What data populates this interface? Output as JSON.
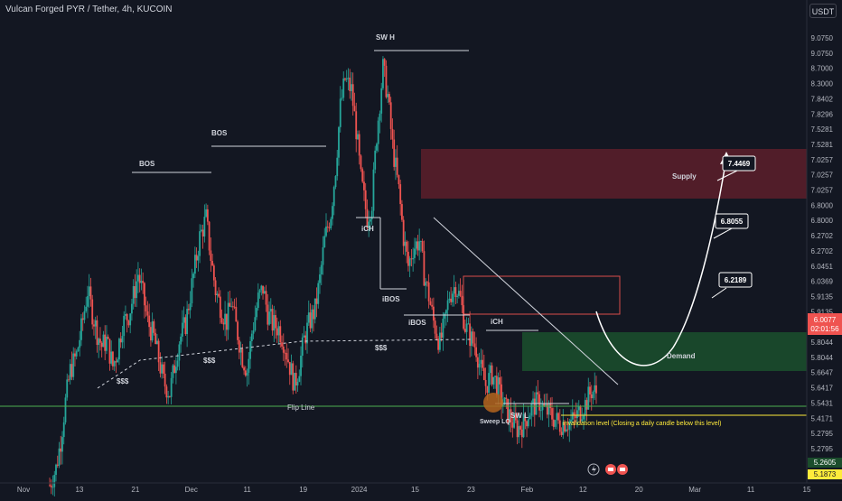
{
  "header": {
    "title": "Vulcan Forged PYR / Tether, 4h, KUCOIN"
  },
  "toolbar": {
    "currency": "USDT"
  },
  "colors": {
    "background": "#131722",
    "up": "#26a69a",
    "down": "#ef5350",
    "supply_zone": "#5d1f2a",
    "demand_zone": "#1b4d2c",
    "annotation": "#d1d4dc",
    "flip_line": "#4caf50",
    "invalidation": "#ffeb3b",
    "sweep_marker": "#b5651d",
    "price_badge": "#ef5350"
  },
  "chart_data": {
    "type": "candlestick",
    "symbol": "Vulcan Forged PYR / Tether",
    "interval": "4h",
    "exchange": "KUCOIN",
    "y_axis": {
      "range": [
        5.17,
        9.35
      ],
      "tick_labels": [
        "9.0750",
        "9.0750",
        "8.7000",
        "8.3000",
        "7.8402",
        "7.8296",
        "7.5281",
        "7.5281",
        "7.0257",
        "7.0257",
        "7.0257",
        "6.8000",
        "6.8000",
        "6.2702",
        "6.2702",
        "6.0451",
        "6.0369",
        "5.9135",
        "5.9135",
        "5.8202",
        "5.8044",
        "5.8044",
        "5.6647",
        "5.6417",
        "5.5431",
        "5.4171",
        "5.2795",
        "5.2795"
      ]
    },
    "x_axis": {
      "tick_labels": [
        "Nov",
        "13",
        "21",
        "Dec",
        "11",
        "19",
        "2024",
        "15",
        "23",
        "Feb",
        "12",
        "20",
        "Mar",
        "11",
        "15"
      ]
    },
    "current_price": {
      "value": "6.0077",
      "countdown": "02:01:56"
    },
    "price_badges": [
      {
        "value": "5.2605",
        "color": "#1b4d2c"
      },
      {
        "value": "5.1873",
        "color": "#ffeb3b"
      }
    ],
    "price_path": [
      [
        0,
        5.15
      ],
      [
        4,
        5.3
      ],
      [
        7,
        5.55
      ],
      [
        10,
        5.9
      ],
      [
        13,
        6.18
      ],
      [
        17,
        6.32
      ],
      [
        20,
        6.55
      ],
      [
        24,
        6.9
      ],
      [
        27,
        6.7
      ],
      [
        30,
        6.52
      ],
      [
        33,
        6.4
      ],
      [
        36,
        6.45
      ],
      [
        40,
        6.22
      ],
      [
        43,
        6.36
      ],
      [
        46,
        6.6
      ],
      [
        50,
        6.68
      ],
      [
        53,
        6.85
      ],
      [
        56,
        7.05
      ],
      [
        59,
        6.86
      ],
      [
        62,
        6.62
      ],
      [
        66,
        6.48
      ],
      [
        69,
        6.28
      ],
      [
        72,
        6.08
      ],
      [
        76,
        5.98
      ],
      [
        79,
        6.22
      ],
      [
        82,
        6.45
      ],
      [
        86,
        6.6
      ],
      [
        89,
        6.86
      ],
      [
        92,
        7.12
      ],
      [
        95,
        7.38
      ],
      [
        99,
        7.55
      ],
      [
        102,
        7.2
      ],
      [
        105,
        6.9
      ],
      [
        109,
        6.72
      ],
      [
        112,
        6.62
      ],
      [
        115,
        6.8
      ],
      [
        118,
        6.58
      ],
      [
        122,
        6.3
      ],
      [
        125,
        6.18
      ],
      [
        128,
        6.52
      ],
      [
        132,
        6.82
      ],
      [
        135,
        6.92
      ],
      [
        138,
        6.7
      ],
      [
        141,
        6.6
      ],
      [
        145,
        6.56
      ],
      [
        148,
        6.45
      ],
      [
        151,
        6.28
      ],
      [
        155,
        6.05
      ],
      [
        158,
        6.22
      ],
      [
        161,
        6.46
      ],
      [
        164,
        6.6
      ],
      [
        168,
        6.73
      ],
      [
        171,
        7.0
      ],
      [
        174,
        7.35
      ],
      [
        178,
        7.6
      ],
      [
        181,
        8.0
      ],
      [
        184,
        8.55
      ],
      [
        187,
        8.8
      ],
      [
        191,
        8.7
      ],
      [
        194,
        8.35
      ],
      [
        197,
        7.9
      ],
      [
        201,
        7.55
      ],
      [
        204,
        7.7
      ],
      [
        207,
        8.3
      ],
      [
        211,
        8.9
      ],
      [
        214,
        8.65
      ],
      [
        217,
        8.2
      ],
      [
        221,
        7.8
      ],
      [
        224,
        7.38
      ],
      [
        227,
        7.12
      ],
      [
        230,
        7.28
      ],
      [
        234,
        7.35
      ],
      [
        237,
        7.05
      ],
      [
        240,
        6.85
      ],
      [
        243,
        6.62
      ],
      [
        247,
        6.42
      ],
      [
        250,
        6.6
      ],
      [
        253,
        6.86
      ],
      [
        257,
        6.95
      ],
      [
        260,
        6.82
      ],
      [
        263,
        6.58
      ],
      [
        267,
        6.46
      ],
      [
        270,
        6.38
      ],
      [
        273,
        6.18
      ],
      [
        276,
        6.05
      ],
      [
        280,
        6.15
      ],
      [
        283,
        6.06
      ],
      [
        286,
        5.92
      ],
      [
        290,
        5.8
      ],
      [
        293,
        5.72
      ],
      [
        296,
        5.66
      ],
      [
        300,
        5.7
      ],
      [
        303,
        5.8
      ],
      [
        306,
        5.86
      ],
      [
        310,
        5.9
      ],
      [
        313,
        5.83
      ],
      [
        316,
        5.8
      ],
      [
        320,
        5.74
      ],
      [
        323,
        5.7
      ],
      [
        326,
        5.72
      ],
      [
        330,
        5.72
      ],
      [
        333,
        5.76
      ],
      [
        336,
        5.82
      ],
      [
        339,
        5.88
      ],
      [
        343,
        6.0
      ],
      [
        346,
        5.98
      ]
    ],
    "annotations": {
      "structure_labels": [
        "BOS",
        "BOS",
        "SW H",
        "iCH",
        "iBOS",
        "iBOS",
        "iCH",
        "SW L",
        "Sweep LQ"
      ],
      "liquidity_labels": [
        "$$$",
        "$$$",
        "$$$"
      ],
      "zones": [
        "Supply",
        "Demand"
      ],
      "flip_line": "Flip Line",
      "invalidation_note": "invalidation level (Closing a daily candle below this level)",
      "targets": [
        "7.4469",
        "6.8055",
        "6.2189"
      ]
    },
    "grid": false,
    "legend": "none"
  },
  "bottom_bar": {
    "icons": [
      "lightning-icon",
      "calendar-event-icon",
      "calendar-event-icon"
    ]
  }
}
